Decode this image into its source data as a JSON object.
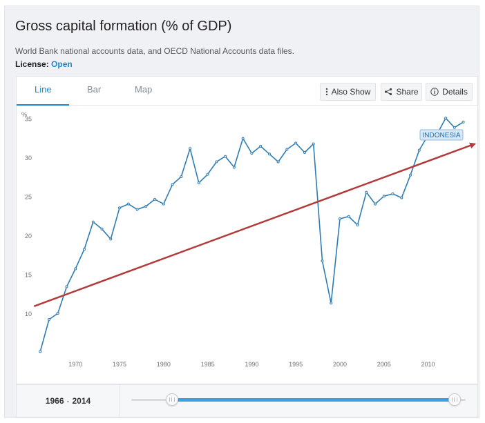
{
  "title": "Gross capital formation (% of GDP)",
  "source": "World Bank national accounts data, and OECD National Accounts data files.",
  "license": {
    "label": "License:",
    "value": "Open"
  },
  "tabs": [
    {
      "label": "Line",
      "active": true
    },
    {
      "label": "Bar",
      "active": false
    },
    {
      "label": "Map",
      "active": false
    }
  ],
  "actions": {
    "also_show": "Also Show",
    "share": "Share",
    "details": "Details"
  },
  "chart_data": {
    "type": "line",
    "ylabel": "%",
    "xlabel": "",
    "ylim": [
      4,
      36
    ],
    "xlim": [
      1965.2,
      2015.6
    ],
    "yticks": [
      10,
      15,
      20,
      25,
      30,
      35
    ],
    "xticks": [
      1970,
      1975,
      1980,
      1985,
      1990,
      1995,
      2000,
      2005,
      2010
    ],
    "grid": false,
    "series": [
      {
        "name": "INDONESIA",
        "color": "#2e7bb4",
        "x": [
          1966,
          1967,
          1968,
          1969,
          1970,
          1971,
          1972,
          1973,
          1974,
          1975,
          1976,
          1977,
          1978,
          1979,
          1980,
          1981,
          1982,
          1983,
          1984,
          1985,
          1986,
          1987,
          1988,
          1989,
          1990,
          1991,
          1992,
          1993,
          1994,
          1995,
          1996,
          1997,
          1998,
          1999,
          2000,
          2001,
          2002,
          2003,
          2004,
          2005,
          2006,
          2007,
          2008,
          2009,
          2010,
          2011,
          2012,
          2013,
          2014
        ],
        "values": [
          5.2,
          9.3,
          10.1,
          13.5,
          15.8,
          18.3,
          21.8,
          20.9,
          19.6,
          23.6,
          24.1,
          23.4,
          23.8,
          24.7,
          24.1,
          26.6,
          27.6,
          31.2,
          26.8,
          27.9,
          29.5,
          30.2,
          28.8,
          32.5,
          30.6,
          31.5,
          30.5,
          29.5,
          31.1,
          31.9,
          30.7,
          31.8,
          16.8,
          11.4,
          22.2,
          22.5,
          21.4,
          25.6,
          24.1,
          25.1,
          25.4,
          24.9,
          27.8,
          31.0,
          32.9,
          33.0,
          35.1,
          33.9,
          34.6
        ]
      }
    ],
    "legend": {
      "label": "INDONESIA",
      "position": "top-right"
    },
    "annotations": [
      {
        "type": "trend-arrow",
        "color": "#b23b3b",
        "from": {
          "x": 1965.3,
          "y": 11.0
        },
        "to": {
          "x": 2015.3,
          "y": 31.8
        }
      }
    ]
  },
  "range": {
    "start": "1966",
    "separator": "-",
    "end": "2014"
  },
  "colors": {
    "accent": "#1a88d8",
    "line": "#2e7bb4",
    "trend": "#b23b3b"
  }
}
